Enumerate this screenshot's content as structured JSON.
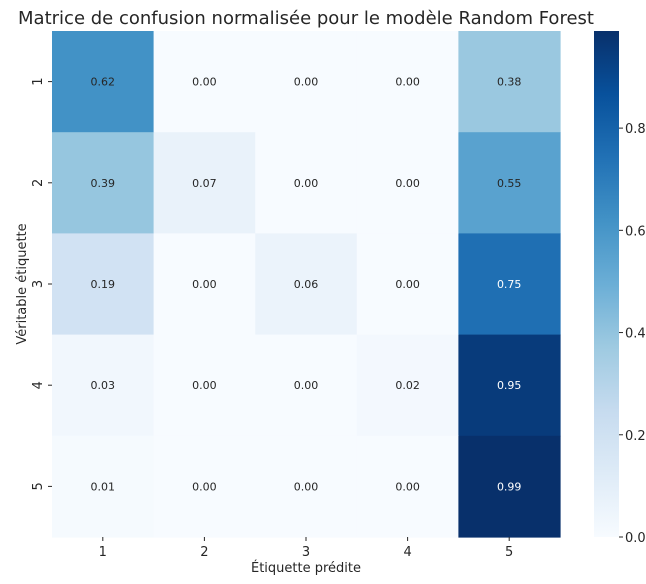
{
  "chart_data": {
    "type": "heatmap",
    "title": "Matrice de confusion normalisée pour le modèle Random Forest",
    "xlabel": "Étiquette prédite",
    "ylabel": "Véritable étiquette",
    "x_categories": [
      "1",
      "2",
      "3",
      "4",
      "5"
    ],
    "y_categories": [
      "1",
      "2",
      "3",
      "4",
      "5"
    ],
    "values": [
      [
        0.62,
        0.0,
        0.0,
        0.0,
        0.38
      ],
      [
        0.39,
        0.07,
        0.0,
        0.0,
        0.55
      ],
      [
        0.19,
        0.0,
        0.06,
        0.0,
        0.75
      ],
      [
        0.03,
        0.0,
        0.0,
        0.02,
        0.95
      ],
      [
        0.01,
        0.0,
        0.0,
        0.0,
        0.99
      ]
    ],
    "value_format": "0.00",
    "colormap": "Blues",
    "colorbar": {
      "vmin": 0.0,
      "vmax": 0.99,
      "ticks": [
        "0.0",
        "0.2",
        "0.4",
        "0.6",
        "0.8"
      ]
    }
  }
}
